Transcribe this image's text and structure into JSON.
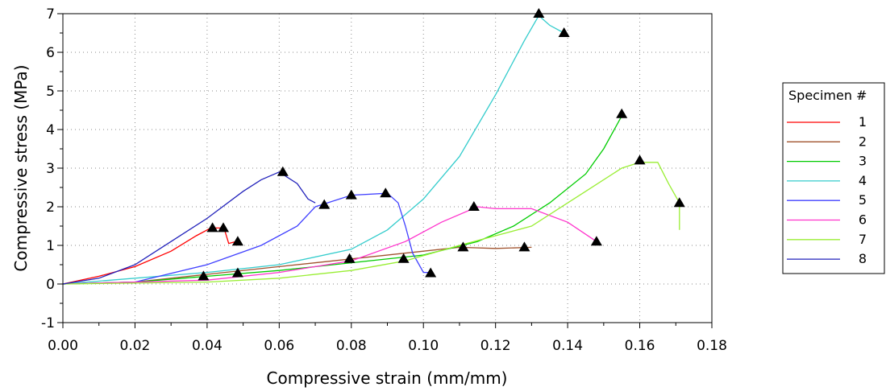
{
  "chart_data": {
    "type": "line",
    "xlabel": "Compressive strain (mm/mm)",
    "ylabel": "Compressive stress (MPa)",
    "xlim": [
      0,
      0.18
    ],
    "ylim": [
      -1,
      7
    ],
    "x_ticks": [
      "0.00",
      "0.02",
      "0.04",
      "0.06",
      "0.08",
      "0.10",
      "0.12",
      "0.14",
      "0.16",
      "0.18"
    ],
    "y_ticks": [
      "-1",
      "0",
      "1",
      "2",
      "3",
      "4",
      "5",
      "6",
      "7"
    ],
    "grid": "dotted",
    "legend": {
      "title": "Specimen #",
      "placement": "right"
    },
    "series": [
      {
        "name": "1",
        "color": "#ff0000",
        "points": [
          [
            0,
            0
          ],
          [
            0.01,
            0.2
          ],
          [
            0.02,
            0.45
          ],
          [
            0.03,
            0.85
          ],
          [
            0.037,
            1.25
          ],
          [
            0.041,
            1.45
          ],
          [
            0.044,
            1.45
          ],
          [
            0.045,
            1.35
          ],
          [
            0.046,
            1.05
          ],
          [
            0.048,
            1.1
          ]
        ],
        "markers": [
          [
            0.0415,
            1.45
          ],
          [
            0.0445,
            1.45
          ],
          [
            0.0485,
            1.1
          ]
        ]
      },
      {
        "name": "2",
        "color": "#a0522d",
        "points": [
          [
            0,
            0
          ],
          [
            0.02,
            0.05
          ],
          [
            0.04,
            0.25
          ],
          [
            0.06,
            0.45
          ],
          [
            0.08,
            0.65
          ],
          [
            0.1,
            0.85
          ],
          [
            0.11,
            0.95
          ],
          [
            0.12,
            0.92
          ],
          [
            0.13,
            0.95
          ]
        ],
        "markers": [
          [
            0.039,
            0.2
          ],
          [
            0.128,
            0.95
          ]
        ]
      },
      {
        "name": "3",
        "color": "#00cc00",
        "points": [
          [
            0,
            0
          ],
          [
            0.02,
            0.05
          ],
          [
            0.04,
            0.2
          ],
          [
            0.06,
            0.35
          ],
          [
            0.08,
            0.55
          ],
          [
            0.1,
            0.75
          ],
          [
            0.115,
            1.1
          ],
          [
            0.125,
            1.5
          ],
          [
            0.135,
            2.1
          ],
          [
            0.145,
            2.85
          ],
          [
            0.15,
            3.5
          ],
          [
            0.155,
            4.35
          ]
        ],
        "markers": [
          [
            0.155,
            4.4
          ]
        ]
      },
      {
        "name": "4",
        "color": "#33cccc",
        "points": [
          [
            0,
            0
          ],
          [
            0.04,
            0.3
          ],
          [
            0.06,
            0.5
          ],
          [
            0.08,
            0.9
          ],
          [
            0.09,
            1.4
          ],
          [
            0.1,
            2.2
          ],
          [
            0.11,
            3.3
          ],
          [
            0.12,
            4.9
          ],
          [
            0.128,
            6.3
          ],
          [
            0.132,
            6.95
          ],
          [
            0.135,
            6.7
          ],
          [
            0.139,
            6.5
          ]
        ],
        "markers": [
          [
            0.132,
            7.0
          ],
          [
            0.139,
            6.5
          ]
        ]
      },
      {
        "name": "5",
        "color": "#4040ff",
        "points": [
          [
            0,
            0
          ],
          [
            0.02,
            0.05
          ],
          [
            0.04,
            0.5
          ],
          [
            0.055,
            1.0
          ],
          [
            0.065,
            1.5
          ],
          [
            0.07,
            2.0
          ],
          [
            0.08,
            2.3
          ],
          [
            0.09,
            2.35
          ],
          [
            0.093,
            2.1
          ],
          [
            0.095,
            1.5
          ],
          [
            0.097,
            0.8
          ],
          [
            0.1,
            0.3
          ],
          [
            0.102,
            0.3
          ]
        ],
        "markers": [
          [
            0.0725,
            2.05
          ],
          [
            0.08,
            2.3
          ],
          [
            0.0895,
            2.35
          ],
          [
            0.102,
            0.28
          ]
        ]
      },
      {
        "name": "6",
        "color": "#ff33cc",
        "points": [
          [
            0,
            0
          ],
          [
            0.04,
            0.1
          ],
          [
            0.06,
            0.3
          ],
          [
            0.08,
            0.6
          ],
          [
            0.095,
            1.1
          ],
          [
            0.105,
            1.6
          ],
          [
            0.115,
            2.0
          ],
          [
            0.12,
            1.95
          ],
          [
            0.13,
            1.95
          ],
          [
            0.14,
            1.6
          ],
          [
            0.148,
            1.1
          ]
        ],
        "markers": [
          [
            0.114,
            2.0
          ],
          [
            0.148,
            1.1
          ]
        ]
      },
      {
        "name": "7",
        "color": "#99ee33",
        "points": [
          [
            0,
            0
          ],
          [
            0.04,
            0.05
          ],
          [
            0.06,
            0.15
          ],
          [
            0.08,
            0.35
          ],
          [
            0.095,
            0.6
          ],
          [
            0.11,
            1.0
          ],
          [
            0.13,
            1.5
          ],
          [
            0.145,
            2.4
          ],
          [
            0.155,
            3.0
          ],
          [
            0.16,
            3.15
          ],
          [
            0.165,
            3.15
          ],
          [
            0.168,
            2.6
          ],
          [
            0.171,
            2.1
          ],
          [
            0.171,
            1.4
          ]
        ],
        "markers": [
          [
            0.0485,
            0.28
          ],
          [
            0.0945,
            0.65
          ],
          [
            0.111,
            0.95
          ],
          [
            0.16,
            3.2
          ],
          [
            0.171,
            2.1
          ]
        ]
      },
      {
        "name": "8",
        "color": "#2222bb",
        "points": [
          [
            0,
            0
          ],
          [
            0.01,
            0.15
          ],
          [
            0.02,
            0.5
          ],
          [
            0.03,
            1.1
          ],
          [
            0.04,
            1.7
          ],
          [
            0.05,
            2.4
          ],
          [
            0.055,
            2.7
          ],
          [
            0.06,
            2.9
          ],
          [
            0.065,
            2.6
          ],
          [
            0.068,
            2.2
          ],
          [
            0.07,
            2.1
          ]
        ],
        "markers": [
          [
            0.061,
            2.9
          ],
          [
            0.0795,
            0.65
          ]
        ]
      }
    ]
  }
}
